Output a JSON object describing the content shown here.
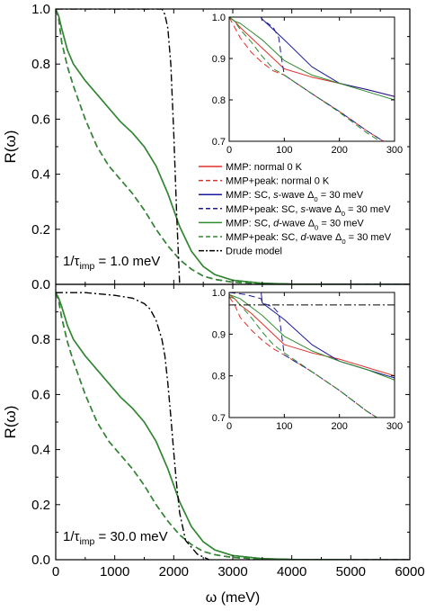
{
  "chart_data": {
    "type": "line",
    "xlabel": "ω (meV)",
    "ylabel": "R(ω)",
    "xlim": [
      0,
      6000
    ],
    "ylim": [
      0,
      1.0
    ],
    "x_ticks": [
      0,
      1000,
      2000,
      3000,
      4000,
      5000,
      6000
    ],
    "y_ticks": [
      0.0,
      0.2,
      0.4,
      0.6,
      0.8,
      1.0
    ],
    "legend": {
      "placement": "top panel, right",
      "entries": [
        {
          "key": "mmp_n",
          "label": "MMP: normal 0 K",
          "color": "#e0302c",
          "dash": "solid"
        },
        {
          "key": "mmpp_n",
          "label": "MMP+peak: normal 0 K",
          "color": "#e0302c",
          "dash": "dashed"
        },
        {
          "key": "mmp_s",
          "label_parts": [
            "MMP: SC, ",
            "s",
            "-wave Δ",
            "0",
            " = 30 meV"
          ],
          "color": "#1a1a9a",
          "dash": "solid"
        },
        {
          "key": "mmpp_s",
          "label_parts": [
            "MMP+peak: SC, ",
            "s",
            "-wave Δ",
            "0",
            " = 30 meV"
          ],
          "color": "#1a1a9a",
          "dash": "dashed"
        },
        {
          "key": "mmp_d",
          "label_parts": [
            "MMP: SC, ",
            "d",
            "-wave Δ",
            "0",
            " = 30 meV"
          ],
          "color": "#2e8b2e",
          "dash": "solid"
        },
        {
          "key": "mmpp_d",
          "label_parts": [
            "MMP+peak: SC, ",
            "d",
            "-wave Δ",
            "0",
            " = 30 meV"
          ],
          "color": "#2e8b2e",
          "dash": "dashed"
        },
        {
          "key": "drude",
          "label": "Drude model",
          "color": "#000000",
          "dash": "dashdot"
        }
      ]
    },
    "panels": [
      {
        "annotation_parts": [
          "1/τ",
          "imp",
          " = 1.0 meV"
        ],
        "series": [
          {
            "key": "mmp",
            "x": [
              0,
              50,
              100,
              200,
              300,
              500,
              700,
              900,
              1100,
              1300,
              1500,
              1700,
              1900,
              2100,
              2300,
              2500,
              2700,
              3000,
              3500,
              4000,
              5000,
              6000
            ],
            "y": [
              1.0,
              0.975,
              0.93,
              0.85,
              0.8,
              0.74,
              0.69,
              0.64,
              0.59,
              0.55,
              0.5,
              0.43,
              0.33,
              0.21,
              0.12,
              0.065,
              0.035,
              0.015,
              0.004,
              0.001,
              0.0,
              0.0
            ]
          },
          {
            "key": "mmpp",
            "x": [
              0,
              50,
              100,
              200,
              300,
              400,
              500,
              700,
              900,
              1100,
              1300,
              1500,
              1700,
              1900,
              2100,
              2300,
              2500,
              2700,
              3000,
              3500,
              4000,
              5000,
              6000
            ],
            "y": [
              1.0,
              0.965,
              0.88,
              0.79,
              0.72,
              0.66,
              0.6,
              0.5,
              0.43,
              0.38,
              0.33,
              0.27,
              0.2,
              0.14,
              0.09,
              0.055,
              0.03,
              0.018,
              0.008,
              0.002,
              0.0,
              0.0,
              0.0
            ]
          },
          {
            "key": "drude",
            "x": [
              0,
              100,
              500,
              1000,
              1400,
              1600,
              1700,
              1750,
              1800,
              1850,
              1900,
              1950,
              2000,
              2050,
              2100
            ],
            "y": [
              1.0,
              1.0,
              1.0,
              1.0,
              1.0,
              1.0,
              1.0,
              1.0,
              1.0,
              0.98,
              0.93,
              0.8,
              0.55,
              0.25,
              0.0
            ]
          }
        ],
        "inset": {
          "xlim": [
            0,
            300
          ],
          "ylim": [
            0.7,
            1.0
          ],
          "x_ticks": [
            0,
            100,
            200,
            300
          ],
          "y_ticks": [
            0.7,
            0.8,
            0.9,
            1.0
          ],
          "series": [
            {
              "key": "mmp_n",
              "x": [
                0,
                5,
                10,
                20,
                40,
                60,
                80,
                100,
                150,
                200,
                250,
                300
              ],
              "y": [
                1.0,
                0.995,
                0.99,
                0.975,
                0.95,
                0.925,
                0.9,
                0.875,
                0.855,
                0.84,
                0.825,
                0.808
              ]
            },
            {
              "key": "mmpp_n",
              "x": [
                0,
                10,
                20,
                40,
                60,
                80,
                100,
                150,
                200,
                250,
                280,
                300
              ],
              "y": [
                1.0,
                0.975,
                0.95,
                0.915,
                0.89,
                0.87,
                0.86,
                0.815,
                0.772,
                0.725,
                0.7,
                0.685
              ]
            },
            {
              "key": "mmp_s",
              "x": [
                0,
                30,
                58,
                60,
                80,
                100,
                150,
                200,
                250,
                300
              ],
              "y": [
                1.0,
                1.0,
                1.0,
                0.995,
                0.97,
                0.945,
                0.88,
                0.84,
                0.825,
                0.808
              ]
            },
            {
              "key": "mmpp_s",
              "x": [
                0,
                30,
                58,
                60,
                70,
                80,
                90,
                95,
                100,
                150,
                200,
                250,
                280,
                300
              ],
              "y": [
                1.0,
                1.0,
                1.0,
                0.99,
                0.985,
                0.975,
                0.95,
                0.9,
                0.86,
                0.815,
                0.772,
                0.725,
                0.7,
                0.685
              ]
            },
            {
              "key": "mmp_d",
              "x": [
                0,
                10,
                20,
                40,
                60,
                80,
                100,
                150,
                200,
                250,
                300
              ],
              "y": [
                1.0,
                0.99,
                0.985,
                0.965,
                0.945,
                0.92,
                0.895,
                0.86,
                0.84,
                0.82,
                0.8
              ]
            },
            {
              "key": "mmpp_d",
              "x": [
                0,
                10,
                20,
                40,
                60,
                80,
                100,
                150,
                200,
                250,
                280,
                300
              ],
              "y": [
                1.0,
                0.99,
                0.97,
                0.94,
                0.905,
                0.875,
                0.86,
                0.815,
                0.77,
                0.72,
                0.695,
                0.68
              ]
            },
            {
              "key": "drude",
              "x": [
                0,
                300
              ],
              "y": [
                1.0,
                1.0
              ]
            }
          ]
        }
      },
      {
        "annotation_parts": [
          "1/τ",
          "imp",
          " = 30.0 meV"
        ],
        "series": [
          {
            "key": "mmp",
            "x": [
              0,
              50,
              100,
              200,
              300,
              500,
              700,
              900,
              1100,
              1300,
              1500,
              1700,
              1900,
              2100,
              2300,
              2500,
              2700,
              3000,
              3500,
              4000,
              5000,
              6000
            ],
            "y": [
              0.97,
              0.95,
              0.92,
              0.85,
              0.8,
              0.74,
              0.69,
              0.64,
              0.59,
              0.55,
              0.5,
              0.43,
              0.33,
              0.21,
              0.12,
              0.065,
              0.035,
              0.015,
              0.004,
              0.001,
              0.0,
              0.0
            ]
          },
          {
            "key": "mmpp",
            "x": [
              0,
              50,
              100,
              200,
              300,
              400,
              500,
              700,
              900,
              1100,
              1300,
              1500,
              1700,
              1900,
              2100,
              2300,
              2500,
              2700,
              3000,
              3500,
              4000,
              5000,
              6000
            ],
            "y": [
              0.97,
              0.94,
              0.88,
              0.79,
              0.72,
              0.66,
              0.6,
              0.5,
              0.43,
              0.38,
              0.33,
              0.27,
              0.2,
              0.14,
              0.09,
              0.055,
              0.03,
              0.018,
              0.008,
              0.002,
              0.0,
              0.0,
              0.0
            ]
          },
          {
            "key": "drude",
            "x": [
              0,
              100,
              500,
              1000,
              1300,
              1500,
              1600,
              1700,
              1800,
              1850,
              1900,
              1950,
              2000,
              2050,
              2100,
              2200,
              2400,
              2600
            ],
            "y": [
              0.97,
              0.97,
              0.97,
              0.96,
              0.95,
              0.93,
              0.91,
              0.87,
              0.8,
              0.74,
              0.64,
              0.52,
              0.39,
              0.27,
              0.17,
              0.07,
              0.02,
              0.0
            ]
          }
        ],
        "inset": {
          "xlim": [
            0,
            300
          ],
          "ylim": [
            0.7,
            1.0
          ],
          "x_ticks": [
            0,
            100,
            200,
            300
          ],
          "y_ticks": [
            0.7,
            0.8,
            0.9,
            1.0
          ],
          "series": [
            {
              "key": "mmp_n",
              "x": [
                0,
                5,
                10,
                20,
                40,
                60,
                80,
                100,
                150,
                200,
                250,
                300
              ],
              "y": [
                0.995,
                0.99,
                0.985,
                0.97,
                0.95,
                0.925,
                0.9,
                0.875,
                0.855,
                0.84,
                0.82,
                0.8
              ]
            },
            {
              "key": "mmpp_n",
              "x": [
                0,
                10,
                20,
                40,
                60,
                80,
                100,
                150,
                200,
                250,
                280,
                300
              ],
              "y": [
                0.99,
                0.97,
                0.94,
                0.91,
                0.885,
                0.865,
                0.85,
                0.81,
                0.765,
                0.715,
                0.69,
                0.675
              ]
            },
            {
              "key": "mmp_s",
              "x": [
                0,
                30,
                58,
                60,
                80,
                100,
                150,
                200,
                250,
                300
              ],
              "y": [
                1.0,
                1.0,
                1.0,
                0.975,
                0.955,
                0.935,
                0.875,
                0.835,
                0.815,
                0.795
              ]
            },
            {
              "key": "mmpp_s",
              "x": [
                0,
                30,
                58,
                60,
                70,
                80,
                90,
                95,
                100,
                150,
                200,
                250,
                280,
                300
              ],
              "y": [
                1.0,
                0.995,
                0.985,
                0.975,
                0.97,
                0.965,
                0.95,
                0.9,
                0.85,
                0.81,
                0.765,
                0.715,
                0.69,
                0.675
              ]
            },
            {
              "key": "mmp_d",
              "x": [
                0,
                10,
                20,
                40,
                60,
                80,
                100,
                150,
                200,
                250,
                300
              ],
              "y": [
                0.995,
                0.99,
                0.985,
                0.965,
                0.945,
                0.92,
                0.895,
                0.86,
                0.835,
                0.815,
                0.79
              ]
            },
            {
              "key": "mmpp_d",
              "x": [
                0,
                10,
                20,
                40,
                60,
                80,
                100,
                150,
                200,
                250,
                280,
                300
              ],
              "y": [
                0.99,
                0.985,
                0.97,
                0.94,
                0.905,
                0.875,
                0.855,
                0.81,
                0.765,
                0.715,
                0.69,
                0.675
              ]
            },
            {
              "key": "drude",
              "x": [
                0,
                300
              ],
              "y": [
                0.97,
                0.97
              ]
            }
          ]
        }
      }
    ]
  }
}
